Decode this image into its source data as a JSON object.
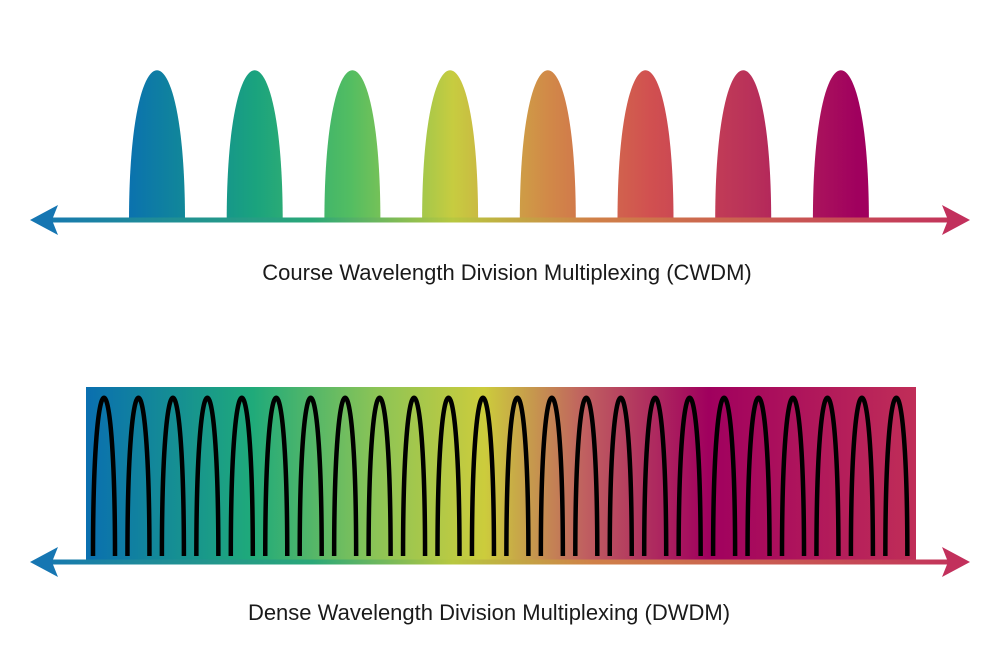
{
  "cwdm": {
    "label": "Course Wavelength Division Multiplexing (CWDM)"
  },
  "dwdm": {
    "label": "Dense Wavelength Division Multiplexing (DWDM)"
  }
}
